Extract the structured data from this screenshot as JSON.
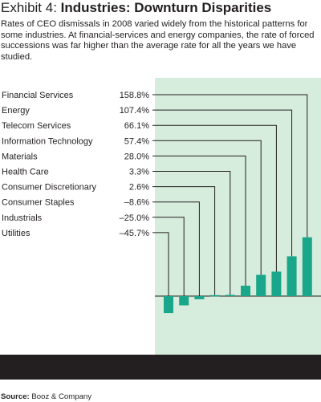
{
  "title": {
    "prefix": "Exhibit 4: ",
    "main": "Industries: Downturn Disparities"
  },
  "description": "Rates of CEO dismissals in 2008 varied widely from the historical patterns for some industries. At financial-services and energy companies, the rate of forced successions was far higher than the average rate for all the years we have studied.",
  "source": {
    "label": "Source:",
    "text": " Booz & Company"
  },
  "colors": {
    "bar": "#1aa68a",
    "panel": "#d6ecdc",
    "bottom_bar": "#231f20",
    "leader": "#231f20"
  },
  "chart_data": {
    "type": "bar",
    "categories": [
      "Financial Services",
      "Energy",
      "Telecom Services",
      "Information Technology",
      "Materials",
      "Health Care",
      "Consumer Discretionary",
      "Consumer Staples",
      "Industrials",
      "Utilities"
    ],
    "values": [
      158.8,
      107.4,
      66.1,
      57.4,
      28.0,
      3.3,
      2.6,
      -8.6,
      -25.0,
      -45.7
    ],
    "value_labels": [
      "158.8%",
      "107.4%",
      "66.1%",
      "57.4%",
      "28.0%",
      "3.3%",
      "2.6%",
      "–8.6%",
      "–25.0%",
      "–45.7%"
    ],
    "unit": "%",
    "bar_order_left_to_right": [
      "Utilities",
      "Industrials",
      "Consumer Staples",
      "Consumer Discretionary",
      "Health Care",
      "Materials",
      "Information Technology",
      "Telecom Services",
      "Energy",
      "Financial Services"
    ],
    "ylim": [
      -52,
      165
    ],
    "legend": "category labels with leader lines, left",
    "grid": false
  }
}
